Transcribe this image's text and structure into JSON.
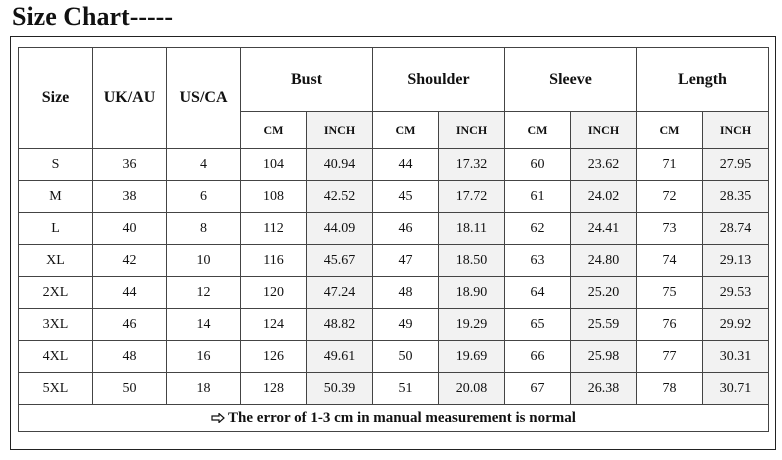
{
  "title": "Size Chart-----",
  "table": {
    "header": [
      "Size",
      "UK/AU",
      "US/CA"
    ],
    "groups": [
      "Bust",
      "Shoulder",
      "Sleeve",
      "Length"
    ],
    "units": [
      "CM",
      "INCH",
      "CM",
      "INCH",
      "CM",
      "INCH",
      "CM",
      "INCH"
    ],
    "rows": [
      [
        "S",
        "36",
        "4",
        "104",
        "40.94",
        "44",
        "17.32",
        "60",
        "23.62",
        "71",
        "27.95"
      ],
      [
        "M",
        "38",
        "6",
        "108",
        "42.52",
        "45",
        "17.72",
        "61",
        "24.02",
        "72",
        "28.35"
      ],
      [
        "L",
        "40",
        "8",
        "112",
        "44.09",
        "46",
        "18.11",
        "62",
        "24.41",
        "73",
        "28.74"
      ],
      [
        "XL",
        "42",
        "10",
        "116",
        "45.67",
        "47",
        "18.50",
        "63",
        "24.80",
        "74",
        "29.13"
      ],
      [
        "2XL",
        "44",
        "12",
        "120",
        "47.24",
        "48",
        "18.90",
        "64",
        "25.20",
        "75",
        "29.53"
      ],
      [
        "3XL",
        "46",
        "14",
        "124",
        "48.82",
        "49",
        "19.29",
        "65",
        "25.59",
        "76",
        "29.92"
      ],
      [
        "4XL",
        "48",
        "16",
        "126",
        "49.61",
        "50",
        "19.69",
        "66",
        "25.98",
        "77",
        "30.31"
      ],
      [
        "5XL",
        "50",
        "18",
        "128",
        "50.39",
        "51",
        "20.08",
        "67",
        "26.38",
        "78",
        "30.71"
      ]
    ],
    "note": "The error of 1-3 cm in manual measurement is normal"
  }
}
